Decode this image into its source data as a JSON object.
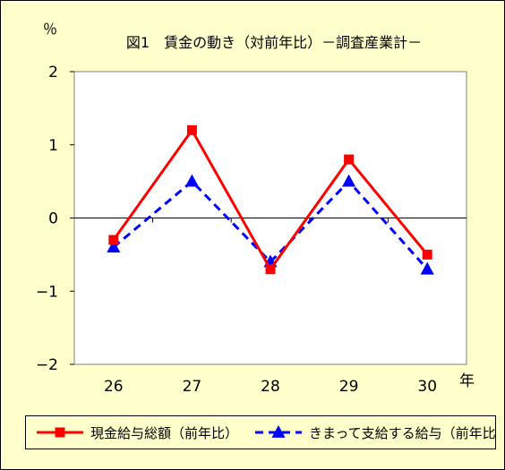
{
  "chart_data": {
    "type": "line",
    "title": "図1　賃金の動き（対前年比）－調査産業計－",
    "ylabel": "％",
    "xlabel": "年",
    "categories": [
      "26",
      "27",
      "28",
      "29",
      "30"
    ],
    "ylim": [
      -2,
      2
    ],
    "yticks": [
      2,
      1,
      0,
      -1,
      -2
    ],
    "ytick_labels": [
      "2",
      "1",
      "0",
      "−1",
      "−2"
    ],
    "grid": false,
    "legend_position": "bottom",
    "series": [
      {
        "name": "現金給与総額（前年比）",
        "values": [
          -0.3,
          1.2,
          -0.7,
          0.8,
          -0.5
        ],
        "color": "#ff0000",
        "marker": "square",
        "dash": "solid"
      },
      {
        "name": "きまって支給する給与（前年比）",
        "values": [
          -0.4,
          0.5,
          -0.6,
          0.5,
          -0.7
        ],
        "color": "#0000ff",
        "marker": "triangle",
        "dash": "dashed"
      }
    ]
  }
}
